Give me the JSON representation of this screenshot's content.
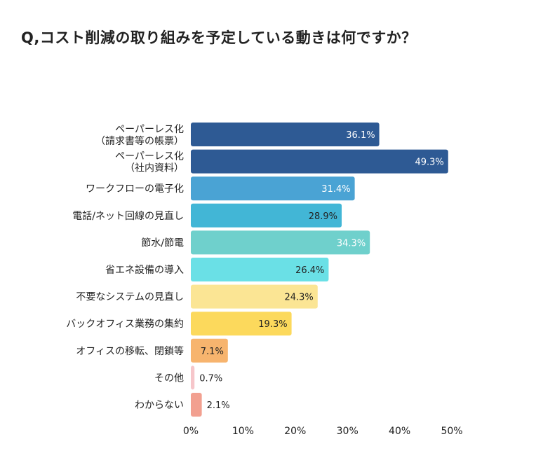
{
  "chart_data": {
    "type": "bar",
    "orientation": "horizontal",
    "title": "Q,コスト削減の取り組みを予定している動きは何ですか？",
    "categories": [
      [
        "ペーパーレス化",
        "（請求書等の帳票）"
      ],
      [
        "ペーパーレス化",
        "（社内資料）"
      ],
      [
        "ワークフローの電子化"
      ],
      [
        "電話/ネット回線の見直し"
      ],
      [
        "節水/節電"
      ],
      [
        "省エネ設備の導入"
      ],
      [
        "不要なシステムの見直し"
      ],
      [
        "バックオフィス業務の集約"
      ],
      [
        "オフィスの移転、閉鎖等"
      ],
      [
        "その他"
      ],
      [
        "わからない"
      ]
    ],
    "values": [
      36.1,
      49.3,
      31.4,
      28.9,
      34.3,
      26.4,
      24.3,
      19.3,
      7.1,
      0.7,
      2.1
    ],
    "value_labels": [
      "36.1%",
      "49.3%",
      "31.4%",
      "28.9%",
      "34.3%",
      "26.4%",
      "24.3%",
      "19.3%",
      "7.1%",
      "0.7%",
      "2.1%"
    ],
    "colors": [
      "#2e5a94",
      "#2e5a94",
      "#4aa3d4",
      "#42b6d6",
      "#6fd0cc",
      "#6ae0e6",
      "#fbe594",
      "#fcd95c",
      "#f7b46e",
      "#f6c6ca",
      "#f2a090"
    ],
    "label_colors": [
      "#ffffff",
      "#ffffff",
      "#ffffff",
      "#222222",
      "#ffffff",
      "#222222",
      "#222222",
      "#222222",
      "#222222",
      "#222222",
      "#222222"
    ],
    "label_inside": [
      true,
      true,
      true,
      true,
      true,
      true,
      true,
      true,
      true,
      false,
      false
    ],
    "xlim": [
      0,
      50
    ],
    "xticks": [
      "0%",
      "10%",
      "20%",
      "30%",
      "40%",
      "50%"
    ],
    "grid": false,
    "xlabel": "",
    "ylabel": ""
  }
}
